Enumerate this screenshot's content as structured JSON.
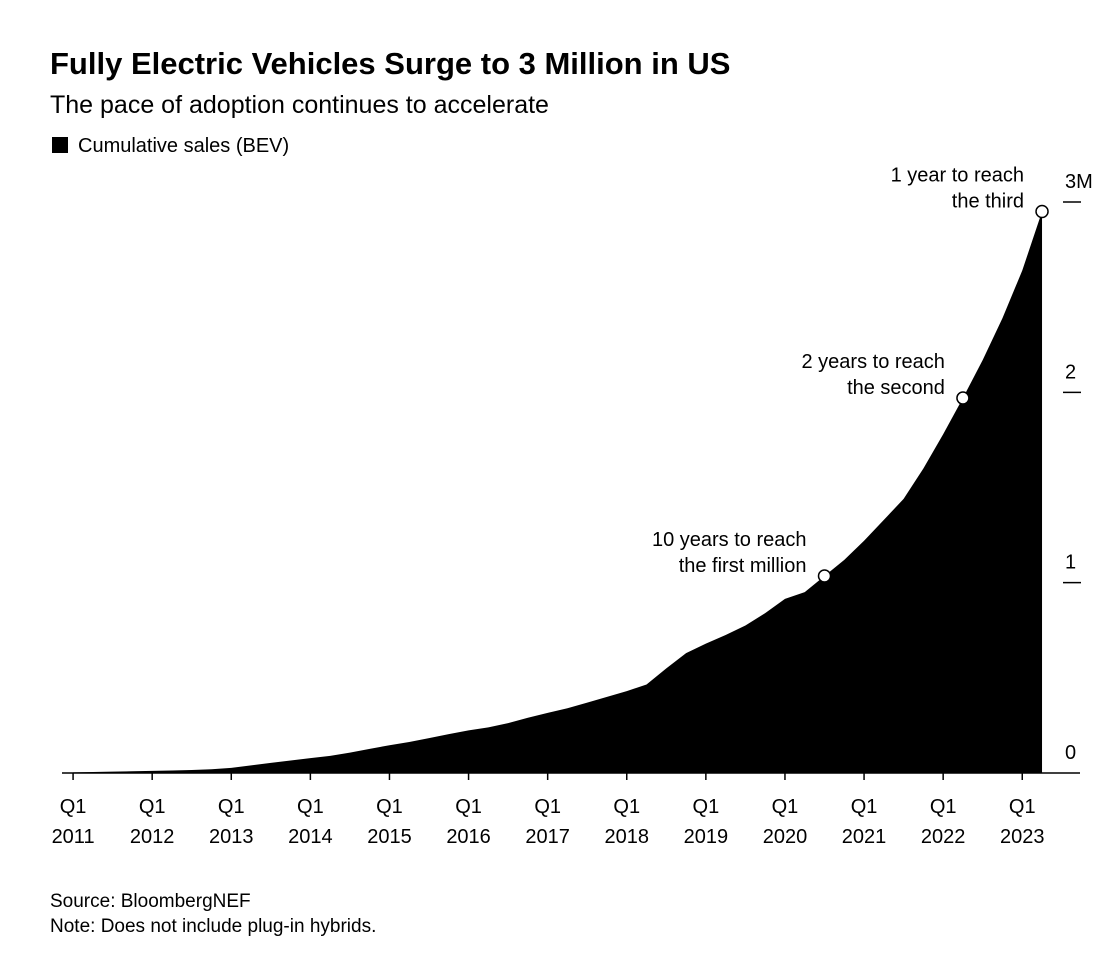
{
  "chart_data": {
    "type": "area",
    "title": "Fully Electric Vehicles Surge to 3 Million in US",
    "subtitle": "The pace of adoption continues to accelerate",
    "legend": "top-left",
    "series": [
      {
        "name": "Cumulative sales (BEV)",
        "color": "#000000",
        "x": [
          2011,
          2011.25,
          2011.5,
          2011.75,
          2012,
          2012.25,
          2012.5,
          2012.75,
          2013,
          2013.25,
          2013.5,
          2013.75,
          2014,
          2014.25,
          2014.5,
          2014.75,
          2015,
          2015.25,
          2015.5,
          2015.75,
          2016,
          2016.25,
          2016.5,
          2016.75,
          2017,
          2017.25,
          2017.5,
          2017.75,
          2018,
          2018.25,
          2018.5,
          2018.75,
          2019,
          2019.25,
          2019.5,
          2019.75,
          2020,
          2020.25,
          2020.5,
          2020.75,
          2021,
          2021.25,
          2021.5,
          2021.75,
          2022,
          2022.25,
          2022.5,
          2022.75,
          2023,
          2023.25
        ],
        "values": [
          0.003,
          0.005,
          0.007,
          0.009,
          0.011,
          0.013,
          0.016,
          0.02,
          0.027,
          0.04,
          0.053,
          0.066,
          0.078,
          0.09,
          0.107,
          0.127,
          0.146,
          0.163,
          0.183,
          0.204,
          0.224,
          0.24,
          0.262,
          0.29,
          0.316,
          0.34,
          0.37,
          0.4,
          0.43,
          0.465,
          0.55,
          0.63,
          0.68,
          0.725,
          0.775,
          0.84,
          0.915,
          0.95,
          1.035,
          1.12,
          1.22,
          1.33,
          1.44,
          1.6,
          1.78,
          1.97,
          2.17,
          2.39,
          2.64,
          2.95
        ]
      }
    ],
    "xlim": [
      2010.86,
      2023.73
    ],
    "xticks": [
      {
        "value": 2011,
        "label": "Q1 2011"
      },
      {
        "value": 2012,
        "label": "Q1 2012"
      },
      {
        "value": 2013,
        "label": "Q1 2013"
      },
      {
        "value": 2014,
        "label": "Q1 2014"
      },
      {
        "value": 2015,
        "label": "Q1 2015"
      },
      {
        "value": 2016,
        "label": "Q1 2016"
      },
      {
        "value": 2017,
        "label": "Q1 2017"
      },
      {
        "value": 2018,
        "label": "Q1 2018"
      },
      {
        "value": 2019,
        "label": "Q1 2019"
      },
      {
        "value": 2020,
        "label": "Q1 2020"
      },
      {
        "value": 2021,
        "label": "Q1 2021"
      },
      {
        "value": 2022,
        "label": "Q1 2022"
      },
      {
        "value": 2023,
        "label": "Q1 2023"
      }
    ],
    "ylim": [
      0,
      3
    ],
    "yticks": [
      0,
      1,
      2,
      {
        "value": 3,
        "label": "3M"
      }
    ],
    "annotations": [
      {
        "lines": [
          "10 years to reach",
          "the first million"
        ],
        "x": 2020.5,
        "y": 1.035
      },
      {
        "lines": [
          "2 years to reach",
          "the second"
        ],
        "x": 2022.25,
        "y": 1.97
      },
      {
        "lines": [
          "1 year to reach",
          "the third"
        ],
        "x": 2023.25,
        "y": 2.95
      }
    ],
    "source": "Source: BloombergNEF",
    "note": "Note: Does not include plug-in hybrids."
  }
}
